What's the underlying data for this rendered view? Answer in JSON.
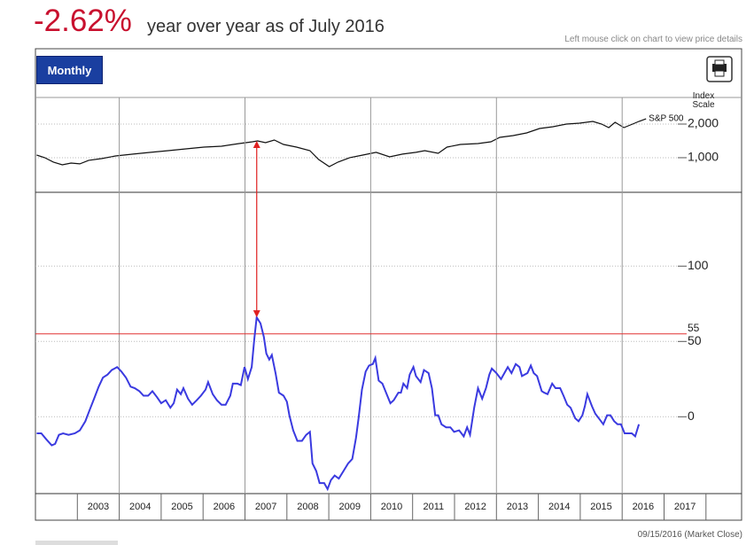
{
  "header": {
    "change": "-2.62%",
    "text": "year over year as of July 2016",
    "hint": "Left mouse click on chart to view price details",
    "button": "Monthly"
  },
  "footer": "09/15/2016 (Market Close)",
  "chart_data": [
    {
      "type": "line",
      "axis_title": "Index Scale",
      "log_scale": true,
      "xlim": [
        2002.0,
        2018.85
      ],
      "ylim": [
        490,
        3460
      ],
      "yticks": [
        {
          "value": 1000,
          "label": "1,000"
        },
        {
          "value": 2000,
          "label": "2,000"
        }
      ],
      "series": [
        {
          "name": "S&P 500",
          "color": "#111111",
          "x": [
            2002.03,
            2002.22,
            2002.43,
            2002.64,
            2002.85,
            2003.06,
            2003.27,
            2003.59,
            2003.91,
            2004.33,
            2004.75,
            2005.17,
            2005.59,
            2006.02,
            2006.44,
            2006.86,
            2007.18,
            2007.3,
            2007.49,
            2007.7,
            2007.92,
            2008.23,
            2008.55,
            2008.76,
            2009.01,
            2009.22,
            2009.5,
            2009.81,
            2010.13,
            2010.45,
            2010.76,
            2011.08,
            2011.29,
            2011.61,
            2011.82,
            2012.14,
            2012.56,
            2012.87,
            2013.08,
            2013.4,
            2013.72,
            2014.03,
            2014.35,
            2014.67,
            2014.98,
            2015.3,
            2015.51,
            2015.68,
            2015.83,
            2016.04,
            2016.25,
            2016.4,
            2016.57
          ],
          "values": [
            1056,
            1000,
            913,
            864,
            896,
            880,
            947,
            982,
            1037,
            1076,
            1116,
            1157,
            1200,
            1245,
            1268,
            1339,
            1389,
            1414,
            1364,
            1440,
            1315,
            1245,
            1157,
            964,
            833,
            913,
            1000,
            1056,
            1116,
            1018,
            1076,
            1116,
            1157,
            1095,
            1245,
            1315,
            1339,
            1389,
            1521,
            1578,
            1667,
            1826,
            1893,
            2000,
            2036,
            2112,
            2000,
            1859,
            2075,
            1859,
            2000,
            2112,
            2229
          ]
        }
      ]
    },
    {
      "type": "line",
      "xlim": [
        2002.0,
        2018.85
      ],
      "ylim": [
        -51,
        149
      ],
      "yticks": [
        0,
        50,
        100
      ],
      "hline": 55,
      "hline_color": "#e03030",
      "xgrid": [
        2004,
        2007,
        2010,
        2013,
        2016
      ],
      "xticks": [
        {
          "value": 2003.5,
          "label": "2003"
        },
        {
          "value": 2004.5,
          "label": "2004"
        },
        {
          "value": 2005.5,
          "label": "2005"
        },
        {
          "value": 2006.5,
          "label": "2006"
        },
        {
          "value": 2007.5,
          "label": "2007"
        },
        {
          "value": 2008.5,
          "label": "2008"
        },
        {
          "value": 2009.5,
          "label": "2009"
        },
        {
          "value": 2010.5,
          "label": "2010"
        },
        {
          "value": 2011.5,
          "label": "2011"
        },
        {
          "value": 2012.5,
          "label": "2012"
        },
        {
          "value": 2013.5,
          "label": "2013"
        },
        {
          "value": 2014.5,
          "label": "2014"
        },
        {
          "value": 2015.5,
          "label": "2015"
        },
        {
          "value": 2016.5,
          "label": "2016"
        },
        {
          "value": 2017.5,
          "label": "2017"
        }
      ],
      "series": [
        {
          "color": "#3a3ae0",
          "x": [
            2002.03,
            2002.14,
            2002.26,
            2002.39,
            2002.47,
            2002.56,
            2002.66,
            2002.79,
            2002.94,
            2003.06,
            2003.19,
            2003.3,
            2003.4,
            2003.51,
            2003.61,
            2003.72,
            2003.82,
            2003.95,
            2004.05,
            2004.16,
            2004.27,
            2004.37,
            2004.48,
            2004.58,
            2004.69,
            2004.79,
            2004.9,
            2005.0,
            2005.11,
            2005.22,
            2005.3,
            2005.38,
            2005.47,
            2005.53,
            2005.64,
            2005.74,
            2005.85,
            2005.95,
            2006.06,
            2006.12,
            2006.23,
            2006.33,
            2006.44,
            2006.54,
            2006.65,
            2006.71,
            2006.82,
            2006.9,
            2006.99,
            2007.07,
            2007.16,
            2007.22,
            2007.28,
            2007.37,
            2007.45,
            2007.51,
            2007.58,
            2007.64,
            2007.73,
            2007.81,
            2007.92,
            2008.0,
            2008.06,
            2008.15,
            2008.25,
            2008.36,
            2008.46,
            2008.55,
            2008.61,
            2008.7,
            2008.78,
            2008.89,
            2008.97,
            2009.05,
            2009.14,
            2009.24,
            2009.35,
            2009.46,
            2009.56,
            2009.65,
            2009.71,
            2009.79,
            2009.88,
            2009.96,
            2010.05,
            2010.11,
            2010.19,
            2010.28,
            2010.38,
            2010.47,
            2010.55,
            2010.66,
            2010.72,
            2010.78,
            2010.87,
            2010.93,
            2011.02,
            2011.08,
            2011.19,
            2011.27,
            2011.38,
            2011.46,
            2011.54,
            2011.61,
            2011.69,
            2011.8,
            2011.9,
            2011.99,
            2012.11,
            2012.22,
            2012.3,
            2012.37,
            2012.47,
            2012.56,
            2012.66,
            2012.75,
            2012.83,
            2012.89,
            2013.0,
            2013.11,
            2013.19,
            2013.27,
            2013.36,
            2013.46,
            2013.55,
            2013.61,
            2013.74,
            2013.82,
            2013.89,
            2013.97,
            2014.08,
            2014.14,
            2014.22,
            2014.33,
            2014.41,
            2014.52,
            2014.6,
            2014.69,
            2014.77,
            2014.88,
            2014.96,
            2015.05,
            2015.11,
            2015.17,
            2015.28,
            2015.36,
            2015.47,
            2015.55,
            2015.64,
            2015.72,
            2015.81,
            2015.89,
            2015.97,
            2016.06,
            2016.14,
            2016.23,
            2016.31,
            2016.4
          ],
          "values": [
            -11,
            -11,
            -15,
            -19,
            -18,
            -12,
            -11,
            -12,
            -11,
            -9,
            -3,
            5,
            12,
            20,
            26,
            28,
            31,
            33,
            30,
            26,
            20,
            19,
            17,
            14,
            14,
            17,
            13,
            9,
            11,
            6,
            9,
            18,
            15,
            19,
            12,
            8,
            11,
            14,
            18,
            23,
            15,
            11,
            8,
            8,
            14,
            22,
            22,
            21,
            33,
            25,
            33,
            51,
            66,
            62,
            53,
            42,
            38,
            41,
            29,
            16,
            14,
            10,
            1,
            -9,
            -16,
            -16,
            -12,
            -10,
            -31,
            -36,
            -44,
            -44,
            -48,
            -42,
            -39,
            -41,
            -36,
            -31,
            -28,
            -14,
            -1,
            18,
            30,
            34,
            35,
            39,
            24,
            22,
            15,
            9,
            11,
            16,
            16,
            22,
            19,
            28,
            33,
            27,
            23,
            31,
            29,
            19,
            1,
            1,
            -5,
            -7,
            -7,
            -10,
            -9,
            -13,
            -7,
            -12,
            6,
            19,
            12,
            19,
            28,
            32,
            29,
            25,
            29,
            33,
            29,
            35,
            33,
            27,
            29,
            34,
            29,
            27,
            17,
            16,
            15,
            22,
            19,
            19,
            14,
            8,
            6,
            -1,
            -3,
            1,
            7,
            15,
            7,
            2,
            -2,
            -5,
            1,
            1,
            -3,
            -5,
            -5,
            -11,
            -11,
            -11,
            -13,
            -5
          ]
        }
      ]
    }
  ]
}
